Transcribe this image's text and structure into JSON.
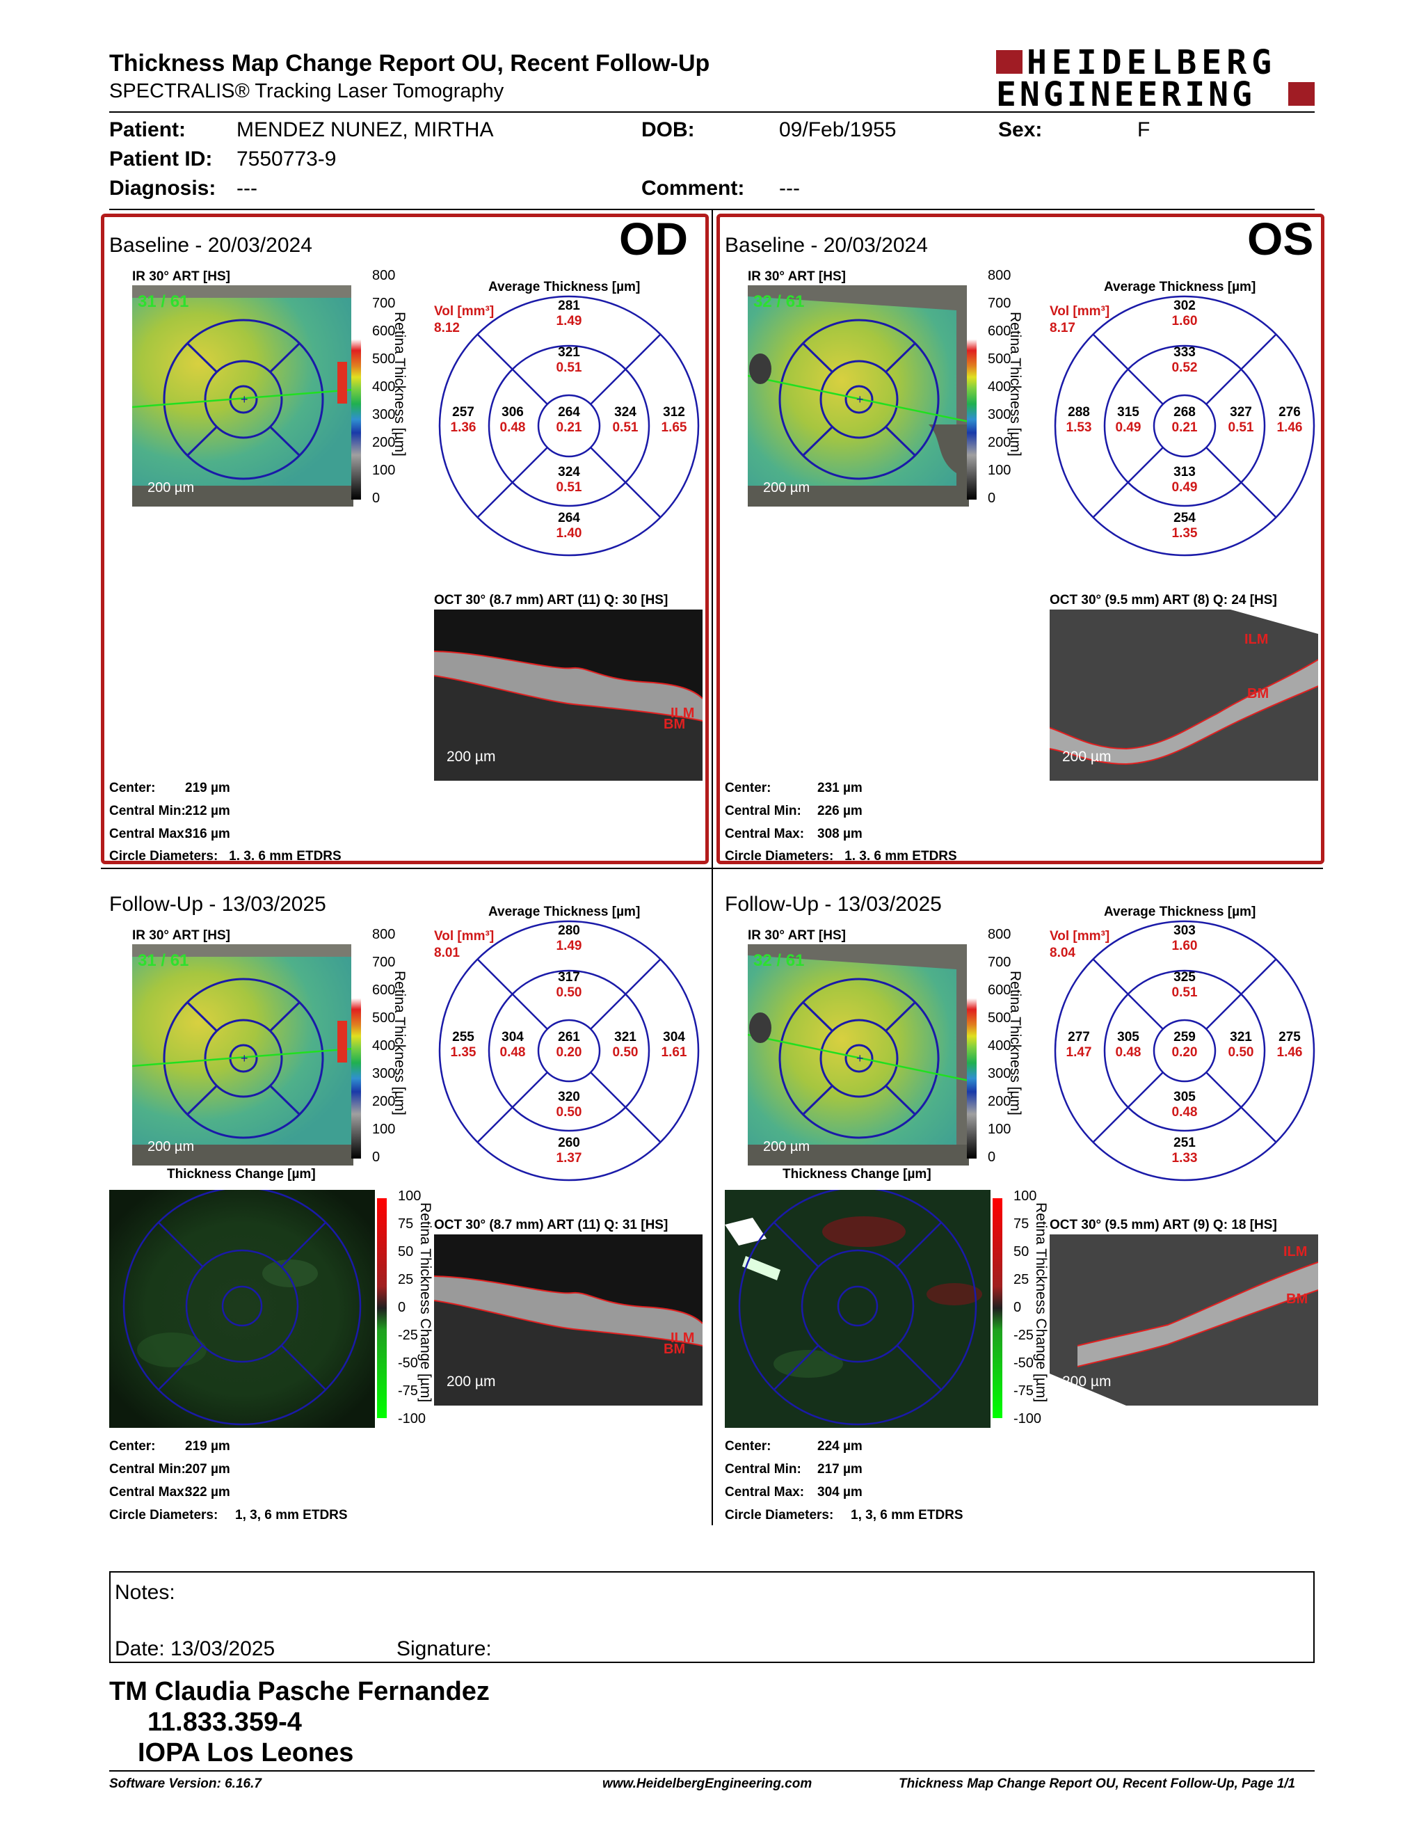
{
  "header": {
    "title": "Thickness Map Change Report OU, Recent Follow-Up",
    "subtitle": "SPECTRALIS® Tracking Laser Tomography",
    "logo_line1": "HEIDELBERG",
    "logo_line2": "ENGINEERING"
  },
  "patient": {
    "patient_label": "Patient:",
    "patient_value": "MENDEZ NUNEZ, MIRTHA",
    "dob_label": "DOB:",
    "dob_value": "09/Feb/1955",
    "sex_label": "Sex:",
    "sex_value": "F",
    "id_label": "Patient ID:",
    "id_value": "7550773-9",
    "diagnosis_label": "Diagnosis:",
    "diagnosis_value": "---",
    "comment_label": "Comment:",
    "comment_value": "---"
  },
  "common": {
    "ir_label": "IR 30° ART [HS]",
    "avg_thickness": "Average Thickness [µm]",
    "vol_label": "Vol [mm³]",
    "scale_200": "200 µm",
    "retina_thickness_axis": "Retina Thickness [µm]",
    "thickness_change_title": "Thickness Change [µm]",
    "thickness_change_axis": "Retina Thickness Change [µm]",
    "ilm": "ILM",
    "bm": "BM",
    "colorbar_ticks": [
      "800",
      "700",
      "600",
      "500",
      "400",
      "300",
      "200",
      "100",
      "0"
    ],
    "change_ticks": [
      "100",
      "75",
      "50",
      "25",
      "0",
      "-25",
      "-50",
      "-75",
      "-100"
    ],
    "center_label": "Center:",
    "cmin_label": "Central Min:",
    "cmax_label": "Central Max:",
    "circle_label": "Circle Diameters:",
    "circle_value": "1, 3, 6 mm ETDRS"
  },
  "panels": {
    "od_base": {
      "eye": "OD",
      "title": "Baseline - 20/03/2024",
      "frame_count": "31 / 61",
      "vol_total": "8.12",
      "grid": {
        "c": [
          "264",
          "0.21"
        ],
        "in_s": [
          "321",
          "0.51"
        ],
        "in_i": [
          "324",
          "0.51"
        ],
        "in_t": [
          "306",
          "0.48"
        ],
        "in_n": [
          "324",
          "0.51"
        ],
        "out_s": [
          "281",
          "1.49"
        ],
        "out_i": [
          "264",
          "1.40"
        ],
        "out_t": [
          "257",
          "1.36"
        ],
        "out_n": [
          "312",
          "1.65"
        ]
      },
      "oct_label": "OCT 30° (8.7 mm) ART (11) Q: 30 [HS]",
      "center": "219 µm",
      "cmin": "212 µm",
      "cmax": "316 µm"
    },
    "os_base": {
      "eye": "OS",
      "title": "Baseline - 20/03/2024",
      "frame_count": "32 / 61",
      "vol_total": "8.17",
      "grid": {
        "c": [
          "268",
          "0.21"
        ],
        "in_s": [
          "333",
          "0.52"
        ],
        "in_i": [
          "313",
          "0.49"
        ],
        "in_t": [
          "315",
          "0.49"
        ],
        "in_n": [
          "327",
          "0.51"
        ],
        "out_s": [
          "302",
          "1.60"
        ],
        "out_i": [
          "254",
          "1.35"
        ],
        "out_t": [
          "288",
          "1.53"
        ],
        "out_n": [
          "276",
          "1.46"
        ]
      },
      "oct_label": "OCT 30° (9.5 mm) ART (8) Q: 24 [HS]",
      "center": "231 µm",
      "cmin": "226 µm",
      "cmax": "308 µm"
    },
    "od_fu": {
      "title": "Follow-Up - 13/03/2025",
      "frame_count": "31 / 61",
      "vol_total": "8.01",
      "grid": {
        "c": [
          "261",
          "0.20"
        ],
        "in_s": [
          "317",
          "0.50"
        ],
        "in_i": [
          "320",
          "0.50"
        ],
        "in_t": [
          "304",
          "0.48"
        ],
        "in_n": [
          "321",
          "0.50"
        ],
        "out_s": [
          "280",
          "1.49"
        ],
        "out_i": [
          "260",
          "1.37"
        ],
        "out_t": [
          "255",
          "1.35"
        ],
        "out_n": [
          "304",
          "1.61"
        ]
      },
      "oct_label": "OCT 30° (8.7 mm) ART (11) Q: 31 [HS]",
      "center": "219 µm",
      "cmin": "207 µm",
      "cmax": "322 µm"
    },
    "os_fu": {
      "title": "Follow-Up - 13/03/2025",
      "frame_count": "32 / 61",
      "vol_total": "8.04",
      "grid": {
        "c": [
          "259",
          "0.20"
        ],
        "in_s": [
          "325",
          "0.51"
        ],
        "in_i": [
          "305",
          "0.48"
        ],
        "in_t": [
          "305",
          "0.48"
        ],
        "in_n": [
          "321",
          "0.50"
        ],
        "out_s": [
          "303",
          "1.60"
        ],
        "out_i": [
          "251",
          "1.33"
        ],
        "out_t": [
          "277",
          "1.47"
        ],
        "out_n": [
          "275",
          "1.46"
        ]
      },
      "oct_label": "OCT 30° (9.5 mm) ART (9) Q: 18 [HS]",
      "center": "224 µm",
      "cmin": "217 µm",
      "cmax": "304 µm"
    }
  },
  "notes": {
    "label": "Notes:",
    "date_label": "Date: 13/03/2025",
    "signature_label": "Signature:"
  },
  "signoff": {
    "name": "TM Claudia Pasche Fernandez",
    "id": "11.833.359-4",
    "place": "IOPA Los Leones"
  },
  "footer": {
    "software": "Software Version: 6.16.7",
    "website": "www.HeidelbergEngineering.com",
    "page": "Thickness Map Change Report OU, Recent Follow-Up, Page 1/1"
  },
  "colors": {
    "frame_red": "#b31b1b",
    "value_red": "#d01818",
    "grid_blue": "#1a1aa8",
    "logo_red": "#a01c24"
  }
}
